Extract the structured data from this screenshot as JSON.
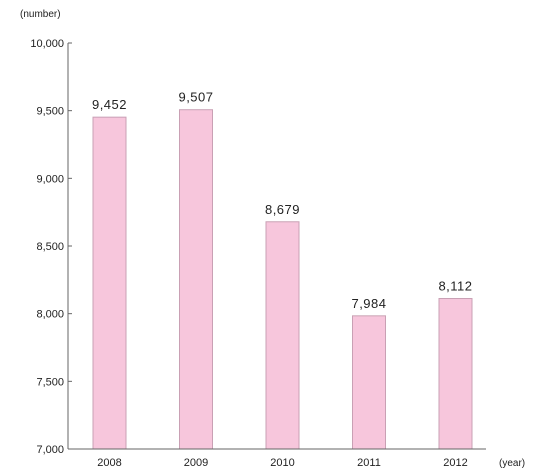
{
  "chart_data": {
    "type": "bar",
    "categories": [
      "2008",
      "2009",
      "2010",
      "2011",
      "2012"
    ],
    "values": [
      9452,
      9507,
      8679,
      7984,
      8112
    ],
    "value_labels": [
      "9,452",
      "9,507",
      "8,679",
      "7,984",
      "8,112"
    ],
    "ylabel": "(number)",
    "xlabel": "(year)",
    "ylim": [
      7000,
      10000
    ],
    "yticks": [
      7000,
      7500,
      8000,
      8500,
      9000,
      9500,
      10000
    ],
    "ytick_labels": [
      "7,000",
      "7,500",
      "8,000",
      "8,500",
      "9,000",
      "9,500",
      "10,000"
    ],
    "grid": false,
    "bar_color": "#f7c6dc",
    "bar_edge_color": "#c9a0b4"
  }
}
